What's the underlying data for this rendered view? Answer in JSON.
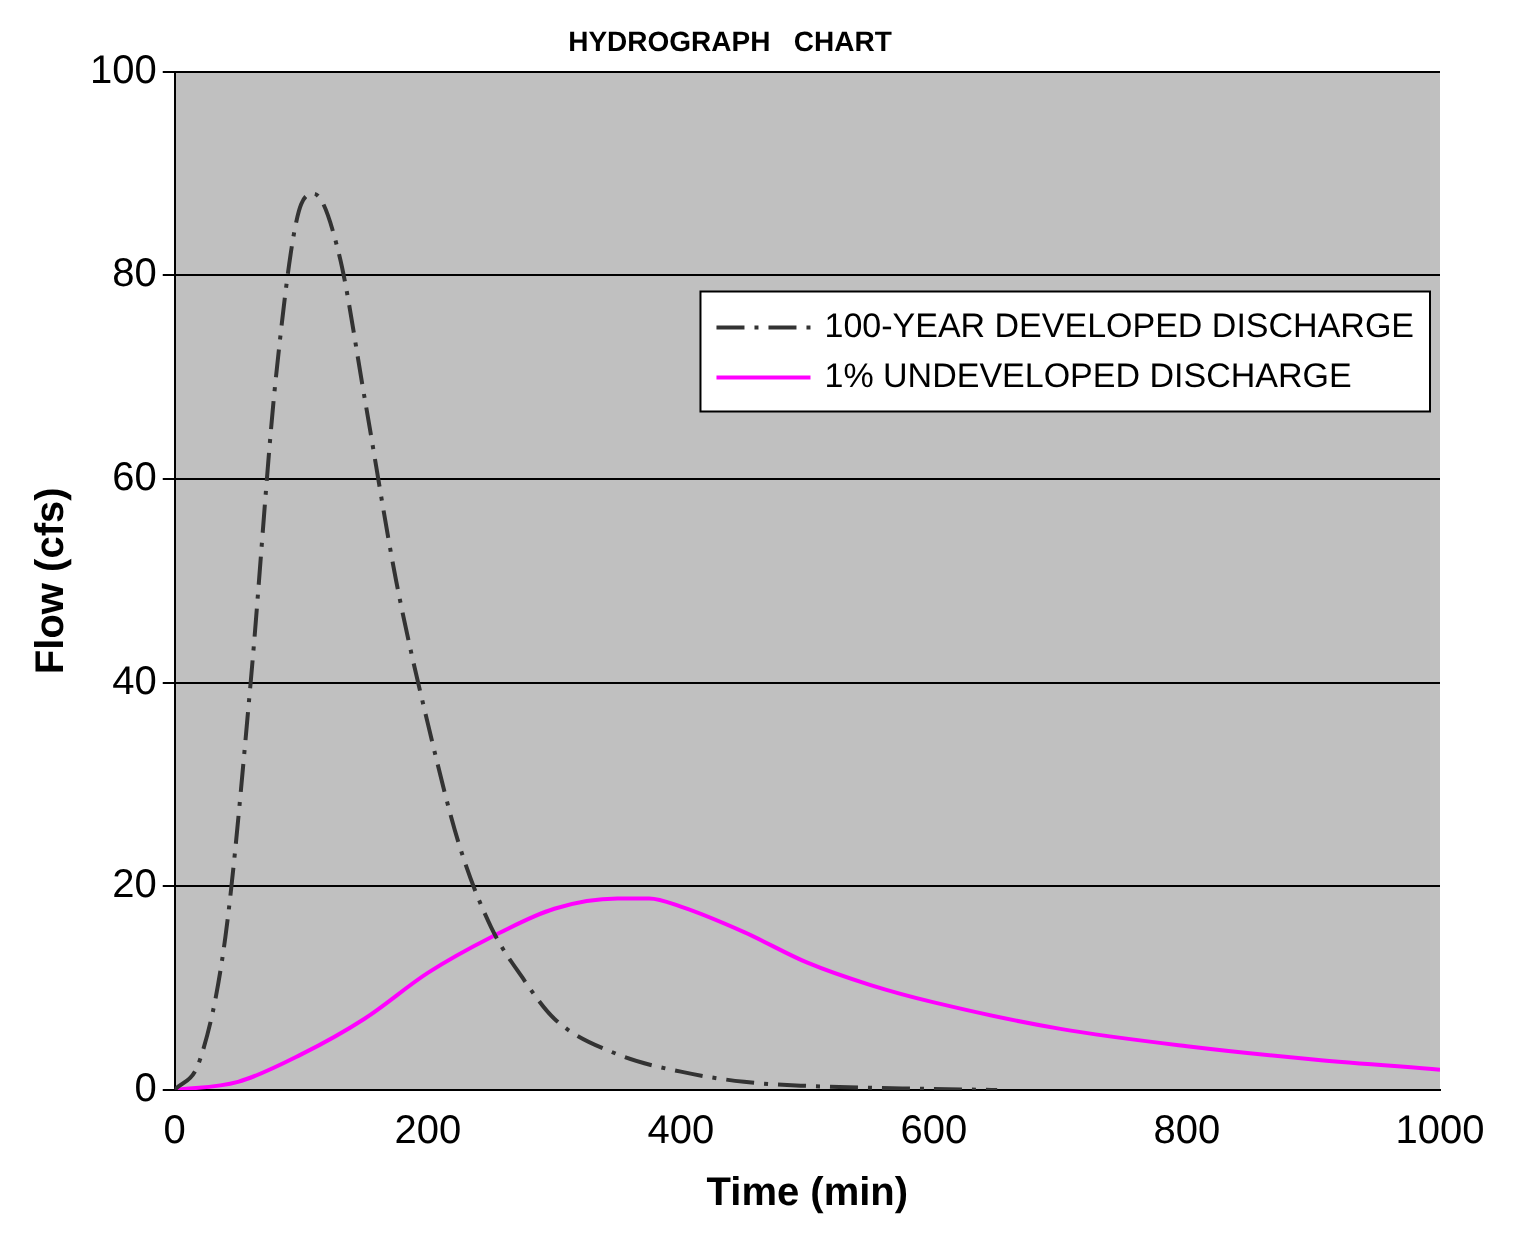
{
  "chart_data": {
    "type": "line",
    "title": "HYDROGRAPH   CHART",
    "xlabel": "Time (min)",
    "ylabel": "Flow (cfs)",
    "xlim": [
      0,
      1000
    ],
    "xticks": [
      0,
      200,
      400,
      600,
      800,
      1000
    ],
    "ylim": [
      0,
      100
    ],
    "yticks": [
      0,
      20,
      40,
      60,
      80,
      100
    ],
    "grid": "y",
    "legend": "top right",
    "marker": "none",
    "series": [
      {
        "name": "100-YEAR DEVELOPED DISCHARGE",
        "color": "#333333",
        "line_style": "dashed",
        "x": [
          0,
          20,
          40,
          60,
          80,
          100,
          110,
          130,
          150,
          175,
          200,
          225,
          250,
          275,
          300,
          350,
          400,
          450,
          500,
          600,
          650
        ],
        "values": [
          0,
          3,
          15,
          40,
          70,
          87,
          88,
          82,
          68,
          50,
          36,
          24,
          16,
          11,
          7,
          3.5,
          1.8,
          0.8,
          0.4,
          0.1,
          0
        ]
      },
      {
        "name": "1% UNDEVELOPED DISCHARGE",
        "color": "#ff00ff",
        "line_style": "solid",
        "x": [
          0,
          50,
          100,
          150,
          200,
          250,
          300,
          350,
          375,
          400,
          450,
          500,
          550,
          600,
          700,
          800,
          900,
          1000
        ],
        "values": [
          0,
          0.8,
          3.5,
          7,
          11.5,
          15,
          17.8,
          18.8,
          18.8,
          18,
          15.5,
          12.5,
          10.3,
          8.6,
          6,
          4.3,
          3,
          2
        ]
      }
    ]
  }
}
